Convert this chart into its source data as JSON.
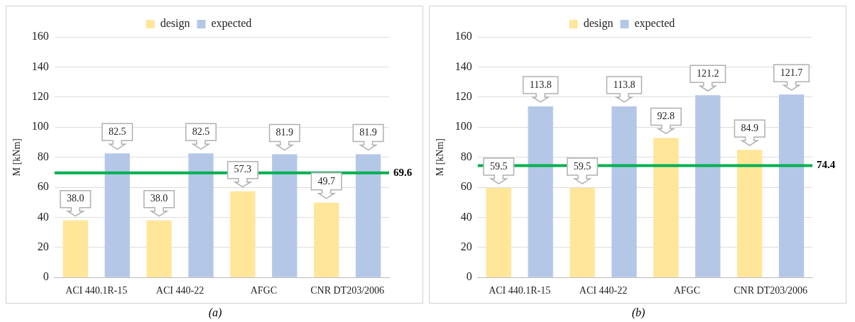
{
  "chart_data": [
    {
      "type": "bar",
      "ylabel": "M [kNm]",
      "categories": [
        "ACI 440.1R-15",
        "ACI 440-22",
        "AFGC",
        "CNR DT203/2006"
      ],
      "series": [
        {
          "name": "design",
          "color": "#ffe699",
          "values": [
            38.0,
            38.0,
            57.3,
            49.7
          ],
          "value_labels": [
            "38.0",
            "38.0",
            "57.3",
            "49.7"
          ]
        },
        {
          "name": "expected",
          "color": "#b4c7e7",
          "values": [
            82.5,
            82.5,
            81.9,
            81.9
          ],
          "value_labels": [
            "82.5",
            "82.5",
            "81.9",
            "81.9"
          ]
        }
      ],
      "ylim": [
        0,
        160
      ],
      "yticks": [
        0,
        20,
        40,
        60,
        80,
        100,
        120,
        140,
        160
      ],
      "grid": "y",
      "legend": "top",
      "ref_lines": [
        {
          "axis": "y",
          "value": 69.6,
          "label": "69.6",
          "color": "#00b050"
        }
      ],
      "annotations": [
        "(a)"
      ]
    },
    {
      "type": "bar",
      "ylabel": "M [kNm]",
      "categories": [
        "ACI 440.1R-15",
        "ACI 440-22",
        "AFGC",
        "CNR DT203/2006"
      ],
      "series": [
        {
          "name": "design",
          "color": "#ffe699",
          "values": [
            59.5,
            59.5,
            92.8,
            84.9
          ],
          "value_labels": [
            "59.5",
            "59.5",
            "92.8",
            "84.9"
          ]
        },
        {
          "name": "expected",
          "color": "#b4c7e7",
          "values": [
            113.8,
            113.8,
            121.2,
            121.7
          ],
          "value_labels": [
            "113.8",
            "113.8",
            "121.2",
            "121.7"
          ]
        }
      ],
      "ylim": [
        0,
        160
      ],
      "yticks": [
        0,
        20,
        40,
        60,
        80,
        100,
        120,
        140,
        160
      ],
      "grid": "y",
      "legend": "top",
      "ref_lines": [
        {
          "axis": "y",
          "value": 74.4,
          "label": "74.4",
          "color": "#00b050"
        }
      ],
      "annotations": [
        "(b)"
      ]
    }
  ]
}
